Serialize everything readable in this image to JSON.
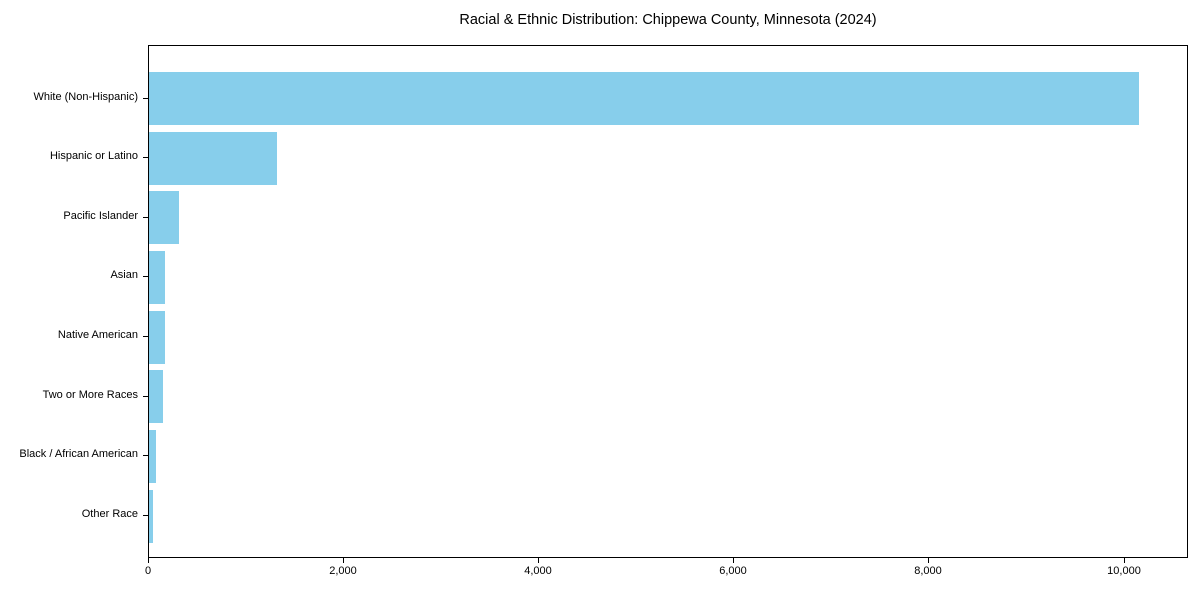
{
  "chart_data": {
    "type": "bar",
    "orientation": "horizontal",
    "title": "Racial & Ethnic Distribution: Chippewa County, Minnesota (2024)",
    "categories": [
      "White (Non-Hispanic)",
      "Hispanic or Latino",
      "Pacific Islander",
      "Asian",
      "Native American",
      "Two or More Races",
      "Black / African American",
      "Other Race"
    ],
    "values": [
      10150,
      1310,
      305,
      165,
      160,
      140,
      75,
      42
    ],
    "xlabel": "",
    "ylabel": "",
    "xlim": [
      0,
      10660
    ],
    "x_ticks": [
      0,
      2000,
      4000,
      6000,
      8000,
      10000
    ],
    "x_tick_labels": [
      "0",
      "2,000",
      "4,000",
      "6,000",
      "8,000",
      "10,000"
    ],
    "bar_color": "#87CEEB",
    "grid": false,
    "legend_position": "none",
    "sort_order": "descending"
  }
}
